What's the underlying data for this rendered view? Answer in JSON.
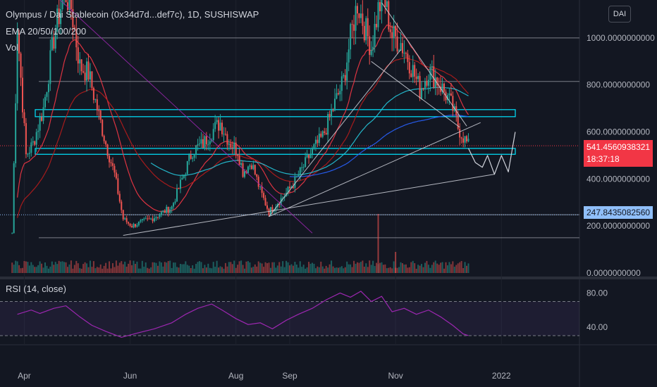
{
  "header": {
    "title": "Olympus / Dai Stablecoin (0x34d7d...def7c), 1D, SUSHISWAP",
    "indicators": "EMA 20/50/100/200",
    "volume": "Vol",
    "currency": "DAI"
  },
  "rsi": {
    "label": "RSI (14, close)",
    "ticks": [
      "80.00",
      "40.00"
    ],
    "upper_band": 70,
    "lower_band": 30
  },
  "last_price": {
    "price": "541.4560938321",
    "countdown": "18:37:18",
    "color": "#f23645"
  },
  "marked_price": {
    "price": "247.8435082560",
    "color": "#90bff9"
  },
  "colors": {
    "background": "#131722",
    "up": "#26a69a",
    "down": "#ef5350",
    "ema20": "#f23645",
    "ema50": "#b71c1c",
    "ema100": "#26c6da",
    "ema200": "#2962ff",
    "rsi": "#9c27b0",
    "channel": "#00e5ff",
    "trendline": "#d1d4dc"
  },
  "chart_data": {
    "type": "candlestick",
    "title": "Olympus / Dai Stablecoin (0x34d7d...def7c), 1D, SUSHISWAP",
    "y_axis": {
      "ticks": [
        "1000.0000000000",
        "800.0000000000",
        "600.0000000000",
        "400.0000000000",
        "200.0000000000",
        "0.0000000000"
      ],
      "tick_values": [
        1000,
        800,
        600,
        400,
        200,
        0
      ],
      "range": [
        0,
        1200
      ]
    },
    "x_axis": {
      "ticks": [
        "Apr",
        "Jun",
        "Aug",
        "Sep",
        "Nov",
        "2022"
      ],
      "tick_dates": [
        "2021-04-01",
        "2021-06-01",
        "2021-08-01",
        "2021-09-01",
        "2021-11-01",
        "2022-01-01"
      ],
      "range": [
        "2021-03-18",
        "2022-02-15"
      ]
    },
    "close_path": [
      [
        "2021-03-25",
        170
      ],
      [
        "2021-03-28",
        1050
      ],
      [
        "2021-04-02",
        500
      ],
      [
        "2021-04-06",
        550
      ],
      [
        "2021-04-12",
        700
      ],
      [
        "2021-04-18",
        1000
      ],
      [
        "2021-04-24",
        1200
      ],
      [
        "2021-04-28",
        1130
      ],
      [
        "2021-05-03",
        880
      ],
      [
        "2021-05-08",
        850
      ],
      [
        "2021-05-13",
        700
      ],
      [
        "2021-05-18",
        550
      ],
      [
        "2021-05-23",
        420
      ],
      [
        "2021-05-28",
        230
      ],
      [
        "2021-06-02",
        200
      ],
      [
        "2021-06-07",
        215
      ],
      [
        "2021-06-13",
        230
      ],
      [
        "2021-06-18",
        250
      ],
      [
        "2021-06-25",
        280
      ],
      [
        "2021-07-01",
        400
      ],
      [
        "2021-07-07",
        520
      ],
      [
        "2021-07-13",
        550
      ],
      [
        "2021-07-19",
        610
      ],
      [
        "2021-07-23",
        640
      ],
      [
        "2021-07-28",
        560
      ],
      [
        "2021-08-02",
        520
      ],
      [
        "2021-08-05",
        430
      ],
      [
        "2021-08-10",
        470
      ],
      [
        "2021-08-15",
        350
      ],
      [
        "2021-08-20",
        260
      ],
      [
        "2021-08-25",
        300
      ],
      [
        "2021-08-29",
        330
      ],
      [
        "2021-09-03",
        380
      ],
      [
        "2021-09-08",
        440
      ],
      [
        "2021-09-14",
        520
      ],
      [
        "2021-09-20",
        580
      ],
      [
        "2021-09-26",
        700
      ],
      [
        "2021-10-02",
        820
      ],
      [
        "2021-10-06",
        1000
      ],
      [
        "2021-10-10",
        1150
      ],
      [
        "2021-10-14",
        1050
      ],
      [
        "2021-10-18",
        960
      ],
      [
        "2021-10-22",
        1120
      ],
      [
        "2021-10-25",
        1180
      ],
      [
        "2021-10-30",
        1010
      ],
      [
        "2021-11-04",
        980
      ],
      [
        "2021-11-09",
        900
      ],
      [
        "2021-11-15",
        780
      ],
      [
        "2021-11-20",
        860
      ],
      [
        "2021-11-25",
        820
      ],
      [
        "2021-11-30",
        760
      ],
      [
        "2021-12-04",
        700
      ],
      [
        "2021-12-07",
        620
      ],
      [
        "2021-12-10",
        580
      ],
      [
        "2021-12-13",
        541
      ]
    ],
    "volume": [
      {
        "date": "2021-10-22",
        "value": 28
      },
      {
        "date": "2021-11-01",
        "value": 10
      }
    ],
    "rsi": [
      [
        "2021-03-28",
        55
      ],
      [
        "2021-04-05",
        60
      ],
      [
        "2021-04-10",
        56
      ],
      [
        "2021-04-18",
        62
      ],
      [
        "2021-04-25",
        65
      ],
      [
        "2021-05-03",
        52
      ],
      [
        "2021-05-10",
        42
      ],
      [
        "2021-05-18",
        35
      ],
      [
        "2021-05-27",
        28
      ],
      [
        "2021-06-05",
        33
      ],
      [
        "2021-06-15",
        38
      ],
      [
        "2021-06-25",
        45
      ],
      [
        "2021-07-03",
        55
      ],
      [
        "2021-07-10",
        62
      ],
      [
        "2021-07-18",
        67
      ],
      [
        "2021-07-24",
        60
      ],
      [
        "2021-08-01",
        50
      ],
      [
        "2021-08-08",
        43
      ],
      [
        "2021-08-15",
        45
      ],
      [
        "2021-08-22",
        38
      ],
      [
        "2021-08-30",
        48
      ],
      [
        "2021-09-06",
        55
      ],
      [
        "2021-09-14",
        62
      ],
      [
        "2021-09-22",
        72
      ],
      [
        "2021-09-30",
        80
      ],
      [
        "2021-10-06",
        75
      ],
      [
        "2021-10-12",
        82
      ],
      [
        "2021-10-18",
        70
      ],
      [
        "2021-10-24",
        76
      ],
      [
        "2021-10-30",
        58
      ],
      [
        "2021-11-06",
        62
      ],
      [
        "2021-11-13",
        55
      ],
      [
        "2021-11-20",
        60
      ],
      [
        "2021-11-27",
        52
      ],
      [
        "2021-12-04",
        42
      ],
      [
        "2021-12-10",
        32
      ],
      [
        "2021-12-13",
        30
      ]
    ]
  }
}
